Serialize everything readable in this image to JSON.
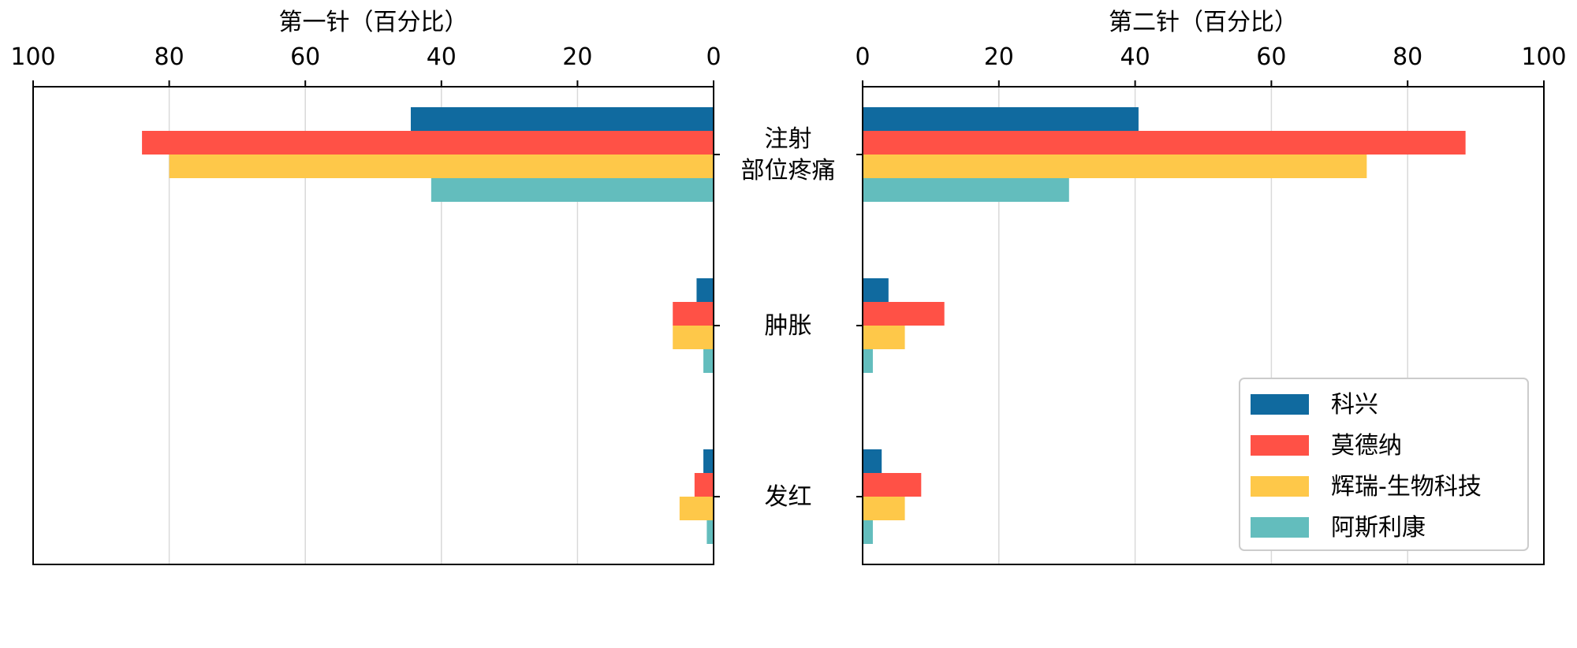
{
  "chart_data": [
    {
      "type": "bar",
      "orientation": "horizontal",
      "direction": "reversed",
      "title": "第一针（百分比）",
      "xlim": [
        0,
        100
      ],
      "xticks": [
        "0",
        "20",
        "40",
        "60",
        "80",
        "100"
      ],
      "grid": true,
      "categories": [
        "注射\n部位疼痛",
        "肿胀",
        "发红"
      ],
      "series": [
        {
          "name": "科兴",
          "color": "#106a9f",
          "values": [
            44.5,
            2.5,
            1.5
          ]
        },
        {
          "name": "莫德纳",
          "color": "#ff5146",
          "values": [
            84,
            6,
            2.8
          ]
        },
        {
          "name": "辉瑞-生物科技",
          "color": "#fec849",
          "values": [
            80,
            6,
            5
          ]
        },
        {
          "name": "阿斯利康",
          "color": "#63bdbd",
          "values": [
            41.5,
            1.5,
            1
          ]
        }
      ]
    },
    {
      "type": "bar",
      "orientation": "horizontal",
      "direction": "normal",
      "title": "第二针（百分比）",
      "xlim": [
        0,
        100
      ],
      "xticks": [
        "0",
        "20",
        "40",
        "60",
        "80",
        "100"
      ],
      "grid": true,
      "categories": [
        "注射\n部位疼痛",
        "肿胀",
        "发红"
      ],
      "series": [
        {
          "name": "科兴",
          "color": "#106a9f",
          "values": [
            40.5,
            3.8,
            2.8
          ]
        },
        {
          "name": "莫德纳",
          "color": "#ff5146",
          "values": [
            88.5,
            12,
            8.6
          ]
        },
        {
          "name": "辉瑞-生物科技",
          "color": "#fec849",
          "values": [
            74,
            6.2,
            6.2
          ]
        },
        {
          "name": "阿斯利康",
          "color": "#63bdbd",
          "values": [
            30.3,
            1.5,
            1.5
          ]
        }
      ]
    }
  ],
  "legend": {
    "placement": "lower-right",
    "items": [
      "科兴",
      "莫德纳",
      "辉瑞-生物科技",
      "阿斯利康"
    ]
  }
}
